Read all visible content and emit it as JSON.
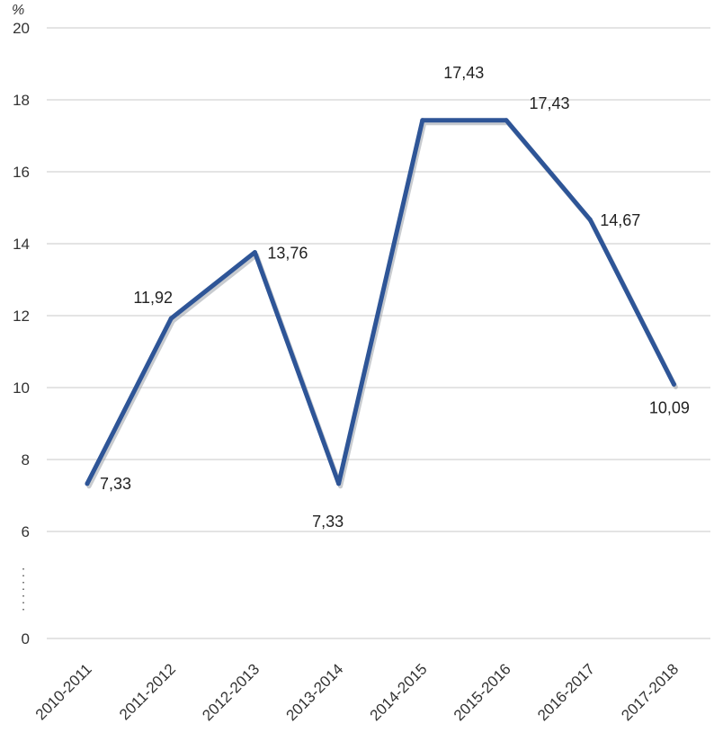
{
  "chart_data": {
    "type": "line",
    "unit_label": "%",
    "categories": [
      "2010-2011",
      "2011-2012",
      "2012-2013",
      "2013-2014",
      "2014-2015",
      "2015-2016",
      "2016-2017",
      "2017-2018"
    ],
    "series": [
      {
        "values": [
          7.33,
          11.92,
          13.76,
          7.33,
          17.43,
          17.43,
          14.67,
          10.09
        ],
        "data_labels": [
          "7,33",
          "11,92",
          "13,76",
          "7,33",
          "17,43",
          "17,43",
          "14,67",
          "10,09"
        ],
        "color": "#2e5597"
      }
    ],
    "y_ticks": [
      "0",
      "6",
      "8",
      "10",
      "12",
      "14",
      "16",
      "18",
      "20"
    ],
    "y_axis_break": "between 0 and 6",
    "ylim": [
      0,
      20
    ],
    "grid": true,
    "legend": "none"
  }
}
